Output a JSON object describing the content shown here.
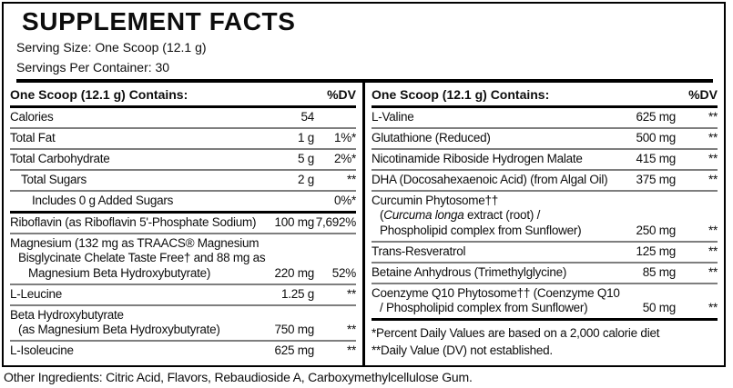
{
  "colors": {
    "text": "#0d0d0d",
    "border": "#000000",
    "row_separator": "#7e7e7e",
    "background": "#ffffff"
  },
  "header": {
    "title": "SUPPLEMENT FACTS",
    "serving_size": "Serving Size: One Scoop (12.1 g)",
    "servings_per_container": "Servings Per Container: 30"
  },
  "col_header": {
    "contains_label": "One Scoop (12.1 g) Contains:",
    "dv_label": "%DV"
  },
  "left": {
    "rows": [
      {
        "name": "Calories",
        "amount": "54",
        "dv": ""
      },
      {
        "name": "Total Fat",
        "amount": "1 g",
        "dv": "1%*"
      },
      {
        "name": "Total Carbohydrate",
        "amount": "5 g",
        "dv": "2%*"
      },
      {
        "name": "Total Sugars",
        "amount": "2 g",
        "dv": "**"
      },
      {
        "name": "Includes 0 g Added Sugars",
        "amount": "",
        "dv": "0%*"
      },
      {
        "name": "Riboflavin (as Riboflavin 5'-Phosphate Sodium)",
        "amount": "100 mg",
        "dv": "7,692%"
      },
      {
        "name_lines": [
          "Magnesium (132 mg as TRAACS® Magnesium",
          "Bisglycinate Chelate Taste Free† and 88 mg as",
          "Magnesium Beta Hydroxybutyrate)"
        ],
        "amount": "220 mg",
        "dv": "52%"
      },
      {
        "name": "L-Leucine",
        "amount": "1.25 g",
        "dv": "**"
      },
      {
        "name_lines": [
          "Beta Hydroxybutyrate",
          "(as Magnesium Beta Hydroxybutyrate)"
        ],
        "amount": "750 mg",
        "dv": "**"
      },
      {
        "name": "L-Isoleucine",
        "amount": "625 mg",
        "dv": "**"
      }
    ]
  },
  "right": {
    "rows": [
      {
        "name": "L-Valine",
        "amount": "625 mg",
        "dv": "**"
      },
      {
        "name": "Glutathione (Reduced)",
        "amount": "500 mg",
        "dv": "**"
      },
      {
        "name": "Nicotinamide Riboside Hydrogen Malate",
        "amount": "415 mg",
        "dv": "**"
      },
      {
        "name": "DHA (Docosahexaenoic Acid) (from Algal Oil)",
        "amount": "375 mg",
        "dv": "**"
      },
      {
        "name_line1": "Curcumin Phytosome††",
        "line2_open": "(",
        "line2_italic": "Curcuma longa",
        "line2_rest": " extract (root) /",
        "name_line3": "Phospholipid complex from Sunflower)",
        "amount": "250 mg",
        "dv": "**"
      },
      {
        "name": "Trans-Resveratrol",
        "amount": "125 mg",
        "dv": "**"
      },
      {
        "name": "Betaine Anhydrous (Trimethylglycine)",
        "amount": "85 mg",
        "dv": "**"
      },
      {
        "name_lines": [
          "Coenzyme Q10 Phytosome†† (Coenzyme Q10",
          "/ Phospholipid complex from Sunflower)"
        ],
        "amount": "50 mg",
        "dv": "**"
      }
    ],
    "footnotes": {
      "line1": "*Percent Daily Values are based on a 2,000 calorie diet",
      "line2": "**Daily Value (DV) not established."
    }
  },
  "other_ingredients": "Other Ingredients: Citric Acid, Flavors, Rebaudioside A, Carboxymethylcellulose Gum."
}
